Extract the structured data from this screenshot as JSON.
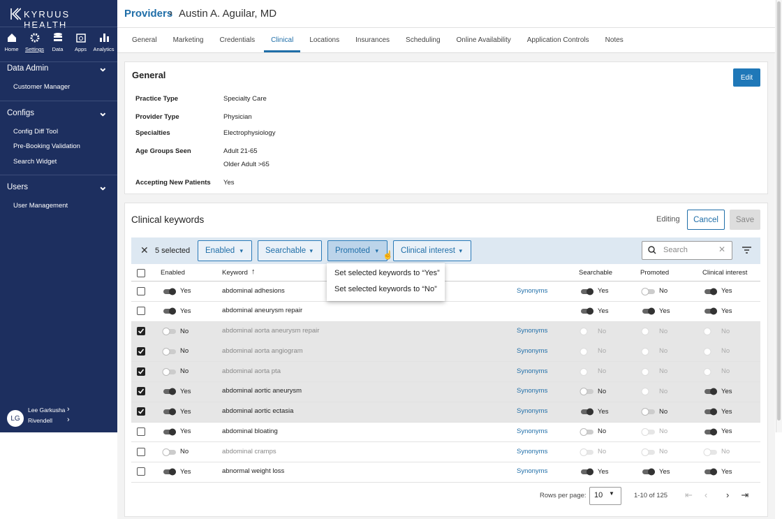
{
  "sidebar": {
    "brand": "KYRUUS HEALTH",
    "nav": [
      "Home",
      "Settings",
      "Data",
      "Apps",
      "Analytics"
    ],
    "sections": [
      {
        "title": "Data Admin",
        "items": [
          "Customer Manager"
        ]
      },
      {
        "title": "Configs",
        "items": [
          "Config Diff Tool",
          "Pre-Booking Validation",
          "Search Widget"
        ]
      },
      {
        "title": "Users",
        "items": [
          "User Management"
        ]
      }
    ],
    "user": {
      "initials": "LG",
      "name": "Lee Garkusha",
      "org": "Rivendell"
    }
  },
  "header": {
    "breadcrumb": "Providers",
    "title": "Austin A. Aguilar, MD"
  },
  "tabs": [
    {
      "label": "General"
    },
    {
      "label": "Marketing"
    },
    {
      "label": "Credentials"
    },
    {
      "label": "Clinical",
      "active": true
    },
    {
      "label": "Locations"
    },
    {
      "label": "Insurances"
    },
    {
      "label": "Scheduling"
    },
    {
      "label": "Online Availability"
    },
    {
      "label": "Application Controls"
    },
    {
      "label": "Notes"
    }
  ],
  "general": {
    "title": "General",
    "edit": "Edit",
    "fields": [
      {
        "label": "Practice Type",
        "values": [
          "Specialty Care"
        ]
      },
      {
        "label": "Provider Type",
        "values": [
          "Physician"
        ]
      },
      {
        "label": "Specialties",
        "values": [
          "Electrophysiology"
        ]
      },
      {
        "label": "Age Groups Seen",
        "values": [
          "Adult 21-65",
          "Older Adult >65"
        ]
      },
      {
        "label": "Accepting New Patients",
        "values": [
          "Yes"
        ]
      }
    ]
  },
  "keywords": {
    "title": "Clinical keywords",
    "status": "Editing",
    "cancel": "Cancel",
    "save": "Save",
    "selected": "5 selected",
    "filters": [
      "Enabled",
      "Searchable",
      "Promoted",
      "Clinical interest"
    ],
    "search_placeholder": "Search",
    "menu": [
      "Set selected keywords to “Yes”",
      "Set selected keywords to “No”"
    ],
    "columns": {
      "enabled": "Enabled",
      "keyword": "Keyword",
      "searchable": "Searchable",
      "promoted": "Promoted",
      "clinical": "Clinical interest"
    },
    "rows": [
      {
        "checked": false,
        "enabled": "Yes",
        "keyword": "abdominal adhesions",
        "synonyms": "Synonyms",
        "searchable": "Yes",
        "promoted": "No",
        "clinical": "Yes"
      },
      {
        "checked": false,
        "enabled": "Yes",
        "keyword": "abdominal aneurysm repair",
        "synonyms": null,
        "searchable": "Yes",
        "promoted": "Yes",
        "clinical": "Yes"
      },
      {
        "checked": true,
        "enabled": "No",
        "keyword": "abdominal aorta aneurysm repair",
        "synonyms": "Synonyms",
        "searchable": "No",
        "promoted": "No",
        "clinical": "No"
      },
      {
        "checked": true,
        "enabled": "No",
        "keyword": "abdominal aorta angiogram",
        "synonyms": "Synonyms",
        "searchable": "No",
        "promoted": "No",
        "clinical": "No"
      },
      {
        "checked": true,
        "enabled": "No",
        "keyword": "abdominal aorta pta",
        "synonyms": "Synonyms",
        "searchable": "No",
        "promoted": "No",
        "clinical": "No"
      },
      {
        "checked": true,
        "enabled": "Yes",
        "keyword": "abdominal aortic aneurysm",
        "synonyms": "Synonyms",
        "searchable": "No",
        "promoted": "No",
        "clinical": "Yes"
      },
      {
        "checked": true,
        "enabled": "Yes",
        "keyword": "abdominal aortic ectasia",
        "synonyms": "Synonyms",
        "searchable": "Yes",
        "promoted": "No",
        "clinical": "Yes"
      },
      {
        "checked": false,
        "enabled": "Yes",
        "keyword": "abdominal bloating",
        "synonyms": "Synonyms",
        "searchable": "No",
        "promoted": "No",
        "clinical": "Yes"
      },
      {
        "checked": false,
        "enabled": "No",
        "keyword": "abdominal cramps",
        "synonyms": "Synonyms",
        "searchable": "No",
        "promoted": "No",
        "clinical": "No"
      },
      {
        "checked": false,
        "enabled": "Yes",
        "keyword": "abnormal weight loss",
        "synonyms": "Synonyms",
        "searchable": "Yes",
        "promoted": "Yes",
        "clinical": "Yes"
      }
    ],
    "pagination": {
      "label": "Rows per page:",
      "page_size": 10,
      "range": "1-10 of 125"
    }
  }
}
